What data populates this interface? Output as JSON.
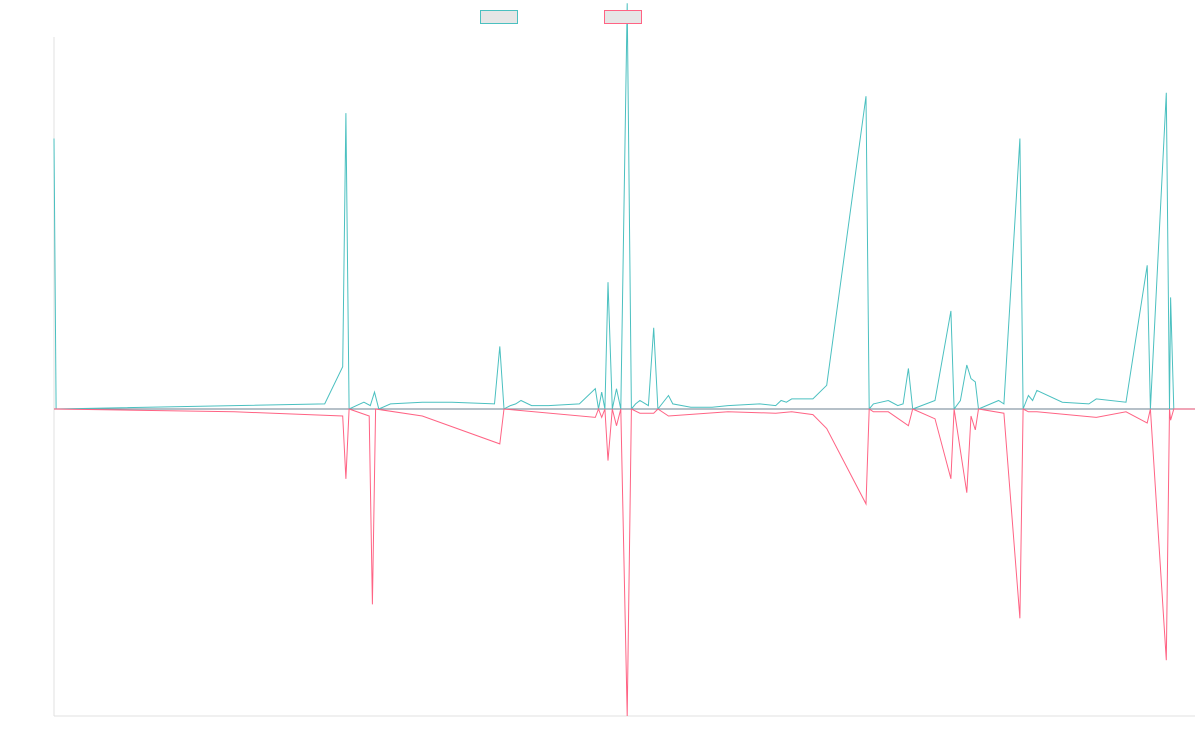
{
  "chart_data": {
    "type": "line",
    "title": "",
    "xlabel": "",
    "ylabel": "",
    "grid": false,
    "legend_position": "top-center",
    "ylim": [
      -2.2,
      2.2
    ],
    "series": [
      {
        "color": "#4bc0c0",
        "points": [
          [
            0,
            1.6
          ],
          [
            2,
            0
          ],
          [
            170,
            0.02
          ],
          [
            255,
            0.03
          ],
          [
            272,
            0.25
          ],
          [
            275,
            1.75
          ],
          [
            278,
            0
          ],
          [
            292,
            0.04
          ],
          [
            298,
            0.02
          ],
          [
            302,
            0.1
          ],
          [
            306,
            0
          ],
          [
            317,
            0.03
          ],
          [
            347,
            0.04
          ],
          [
            375,
            0.04
          ],
          [
            415,
            0.03
          ],
          [
            420,
            0.37
          ],
          [
            424,
            0
          ],
          [
            430,
            0.02
          ],
          [
            435,
            0.03
          ],
          [
            440,
            0.05
          ],
          [
            450,
            0.02
          ],
          [
            460,
            0.02
          ],
          [
            466,
            0.02
          ],
          [
            495,
            0.03
          ],
          [
            510,
            0.12
          ],
          [
            513,
            0
          ],
          [
            516,
            0.1
          ],
          [
            519,
            0
          ],
          [
            522,
            0.75
          ],
          [
            526,
            0
          ],
          [
            530,
            0.12
          ],
          [
            534,
            0
          ],
          [
            540,
            2.4
          ],
          [
            544,
            0
          ],
          [
            548,
            0.03
          ],
          [
            552,
            0.05
          ],
          [
            560,
            0.02
          ],
          [
            565,
            0.48
          ],
          [
            569,
            0
          ],
          [
            579,
            0.08
          ],
          [
            583,
            0.03
          ],
          [
            600,
            0.01
          ],
          [
            610,
            0.01
          ],
          [
            620,
            0.01
          ],
          [
            635,
            0.02
          ],
          [
            665,
            0.03
          ],
          [
            680,
            0.02
          ],
          [
            685,
            0.05
          ],
          [
            690,
            0.04
          ],
          [
            695,
            0.06
          ],
          [
            715,
            0.06
          ],
          [
            728,
            0.14
          ],
          [
            765,
            1.85
          ],
          [
            768,
            0
          ],
          [
            772,
            0.03
          ],
          [
            786,
            0.05
          ],
          [
            795,
            0.02
          ],
          [
            800,
            0.03
          ],
          [
            805,
            0.24
          ],
          [
            809,
            0
          ],
          [
            830,
            0.05
          ],
          [
            845,
            0.58
          ],
          [
            848,
            0
          ],
          [
            854,
            0.05
          ],
          [
            860,
            0.26
          ],
          [
            864,
            0.18
          ],
          [
            868,
            0.16
          ],
          [
            871,
            0
          ],
          [
            890,
            0.05
          ],
          [
            895,
            0.03
          ],
          [
            910,
            1.6
          ],
          [
            913,
            0
          ],
          [
            918,
            0.08
          ],
          [
            922,
            0.05
          ],
          [
            926,
            0.11
          ],
          [
            950,
            0.04
          ],
          [
            975,
            0.03
          ],
          [
            982,
            0.06
          ],
          [
            1010,
            0.04
          ],
          [
            1030,
            0.85
          ],
          [
            1033,
            0
          ],
          [
            1048,
            1.87
          ],
          [
            1051,
            0
          ],
          [
            1052,
            0.66
          ],
          [
            1055,
            0
          ],
          [
            1075,
            0
          ]
        ]
      },
      {
        "color": "#ff6384",
        "points": [
          [
            0,
            0
          ],
          [
            2,
            0
          ],
          [
            170,
            -0.02
          ],
          [
            272,
            -0.05
          ],
          [
            275,
            -0.5
          ],
          [
            278,
            0
          ],
          [
            297,
            -0.05
          ],
          [
            300,
            -1.4
          ],
          [
            303,
            0
          ],
          [
            347,
            -0.05
          ],
          [
            420,
            -0.25
          ],
          [
            424,
            0
          ],
          [
            510,
            -0.06
          ],
          [
            513,
            0
          ],
          [
            516,
            -0.06
          ],
          [
            519,
            0
          ],
          [
            522,
            -0.37
          ],
          [
            526,
            0
          ],
          [
            530,
            -0.12
          ],
          [
            534,
            0
          ],
          [
            540,
            -2.2
          ],
          [
            544,
            0
          ],
          [
            552,
            -0.03
          ],
          [
            565,
            -0.03
          ],
          [
            569,
            0
          ],
          [
            579,
            -0.05
          ],
          [
            635,
            -0.02
          ],
          [
            680,
            -0.03
          ],
          [
            695,
            -0.02
          ],
          [
            715,
            -0.04
          ],
          [
            728,
            -0.14
          ],
          [
            765,
            -0.68
          ],
          [
            768,
            0
          ],
          [
            772,
            -0.02
          ],
          [
            786,
            -0.02
          ],
          [
            805,
            -0.12
          ],
          [
            809,
            0
          ],
          [
            830,
            -0.07
          ],
          [
            845,
            -0.5
          ],
          [
            848,
            0
          ],
          [
            860,
            -0.6
          ],
          [
            864,
            -0.05
          ],
          [
            868,
            -0.15
          ],
          [
            871,
            0
          ],
          [
            895,
            -0.03
          ],
          [
            910,
            -1.5
          ],
          [
            913,
            0
          ],
          [
            918,
            -0.02
          ],
          [
            926,
            -0.02
          ],
          [
            982,
            -0.06
          ],
          [
            1010,
            -0.02
          ],
          [
            1030,
            -0.1
          ],
          [
            1033,
            0
          ],
          [
            1048,
            -1.8
          ],
          [
            1051,
            0
          ],
          [
            1052,
            -0.08
          ],
          [
            1055,
            0
          ],
          [
            1075,
            0
          ]
        ]
      }
    ]
  }
}
